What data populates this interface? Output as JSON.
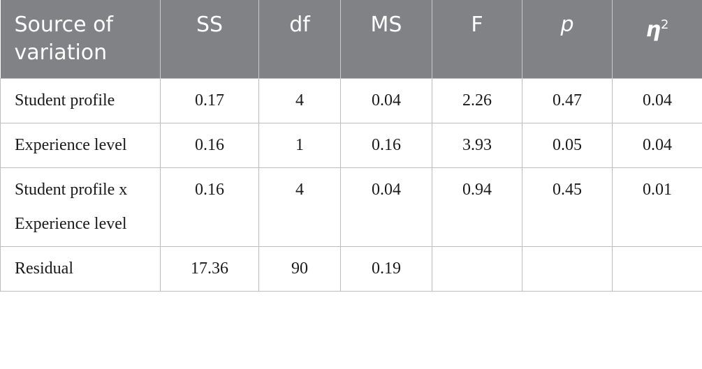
{
  "table": {
    "header": [
      "Source of variation",
      "SS",
      "df",
      "MS",
      "F",
      "p",
      {
        "base": "η",
        "sup": "2"
      }
    ],
    "rows": [
      [
        "Student profile",
        "0.17",
        "4",
        "0.04",
        "2.26",
        "0.47",
        "0.04"
      ],
      [
        "Experience level",
        "0.16",
        "1",
        "0.16",
        "3.93",
        "0.05",
        "0.04"
      ],
      [
        "Student profile x Experience level",
        "0.16",
        "4",
        "0.04",
        "0.94",
        "0.45",
        "0.01"
      ],
      [
        "Residual",
        "17.36",
        "90",
        "0.19"
      ]
    ]
  }
}
